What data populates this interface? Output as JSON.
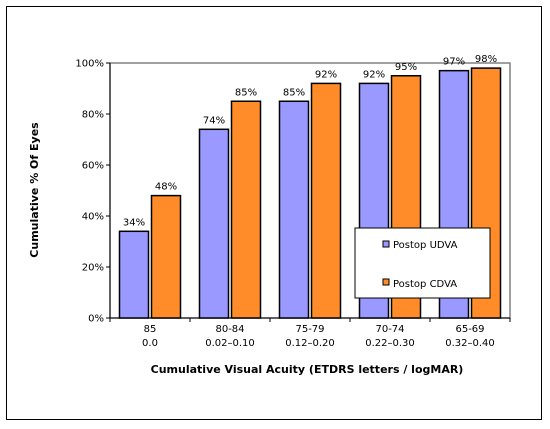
{
  "chart_data": {
    "type": "bar",
    "title": "",
    "xlabel": "Cumulative Visual Acuity (ETDRS letters / logMAR)",
    "ylabel": "Cumulative % Of Eyes",
    "ylim": [
      0,
      100
    ],
    "yticks": [
      "0%",
      "20%",
      "40%",
      "60%",
      "80%",
      "100%"
    ],
    "grid": false,
    "legend_position": "right",
    "categories": [
      {
        "letters": "85",
        "logmar": "0.0"
      },
      {
        "letters": "80-84",
        "logmar": "0.02–0.10"
      },
      {
        "letters": "75-79",
        "logmar": "0.12–0.20"
      },
      {
        "letters": "70-74",
        "logmar": "0.22–0.30"
      },
      {
        "letters": "65-69",
        "logmar": "0.32–0.40"
      }
    ],
    "series": [
      {
        "name": "Postop UDVA",
        "color": "#9999ff",
        "values": [
          34,
          74,
          85,
          92,
          97
        ],
        "labels": [
          "34%",
          "74%",
          "85%",
          "92%",
          "97%"
        ]
      },
      {
        "name": "Postop CDVA",
        "color": "#ff8c28",
        "values": [
          48,
          85,
          92,
          95,
          98
        ],
        "labels": [
          "48%",
          "85%",
          "92%",
          "95%",
          "98%"
        ]
      }
    ]
  }
}
